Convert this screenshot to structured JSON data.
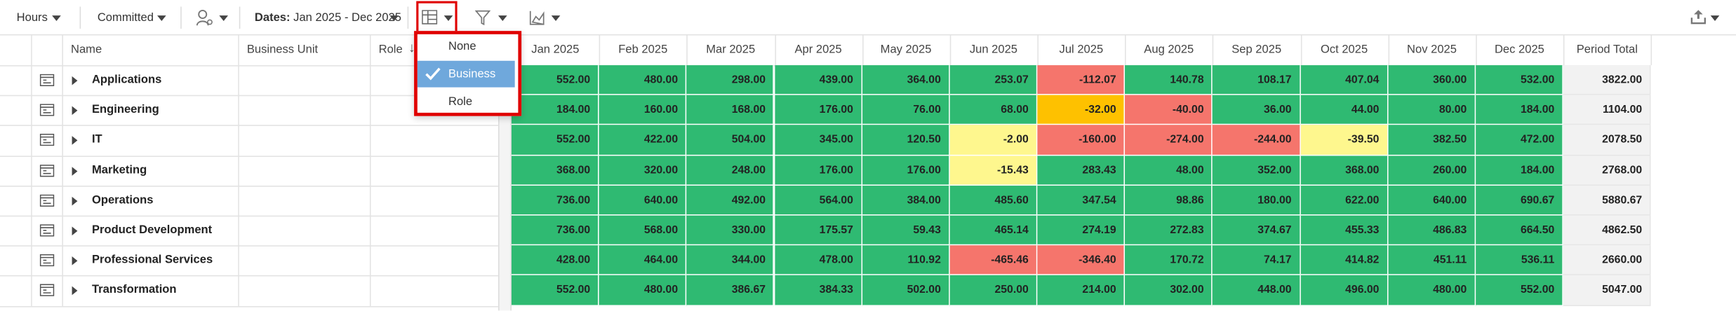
{
  "toolbar": {
    "hours": "Hours",
    "committed": "Committed",
    "dates_label": "Dates:",
    "dates_value": "Jan 2025 - Dec 2025"
  },
  "dropdown": {
    "items": [
      "None",
      "Business Unit",
      "Role"
    ],
    "selected": 1
  },
  "table": {
    "columns": [
      "Name",
      "Business Unit",
      "Role"
    ],
    "months": [
      "Jan 2025",
      "Feb 2025",
      "Mar 2025",
      "Apr 2025",
      "May 2025",
      "Jun 2025",
      "Jul 2025",
      "Aug 2025",
      "Sep 2025",
      "Oct 2025",
      "Nov 2025",
      "Dec 2025"
    ],
    "total_header": "Period Total",
    "rows": [
      {
        "name": "Applications",
        "values": [
          "552.00",
          "480.00",
          "298.00",
          "439.00",
          "364.00",
          "253.07",
          "-112.07",
          "140.78",
          "108.17",
          "407.04",
          "360.00",
          "532.00"
        ],
        "total": "3822.00",
        "colors": [
          "#2fba72",
          "#2fba72",
          "#2fba72",
          "#2fba72",
          "#2fba72",
          "#2fba72",
          "#f5756c",
          "#2fba72",
          "#2fba72",
          "#2fba72",
          "#2fba72",
          "#2fba72"
        ]
      },
      {
        "name": "Engineering",
        "values": [
          "184.00",
          "160.00",
          "168.00",
          "176.00",
          "76.00",
          "68.00",
          "-32.00",
          "-40.00",
          "36.00",
          "44.00",
          "80.00",
          "184.00"
        ],
        "total": "1104.00",
        "colors": [
          "#2fba72",
          "#2fba72",
          "#2fba72",
          "#2fba72",
          "#2fba72",
          "#2fba72",
          "#fec100",
          "#f5756c",
          "#2fba72",
          "#2fba72",
          "#2fba72",
          "#2fba72"
        ]
      },
      {
        "name": "IT",
        "values": [
          "552.00",
          "422.00",
          "504.00",
          "345.00",
          "120.50",
          "-2.00",
          "-160.00",
          "-274.00",
          "-244.00",
          "-39.50",
          "382.50",
          "472.00"
        ],
        "total": "2078.50",
        "colors": [
          "#2fba72",
          "#2fba72",
          "#2fba72",
          "#2fba72",
          "#2fba72",
          "#fef78e",
          "#f5756c",
          "#f5756c",
          "#f5756c",
          "#fef78e",
          "#2fba72",
          "#2fba72"
        ]
      },
      {
        "name": "Marketing",
        "values": [
          "368.00",
          "320.00",
          "248.00",
          "176.00",
          "176.00",
          "-15.43",
          "283.43",
          "48.00",
          "352.00",
          "368.00",
          "260.00",
          "184.00"
        ],
        "total": "2768.00",
        "colors": [
          "#2fba72",
          "#2fba72",
          "#2fba72",
          "#2fba72",
          "#2fba72",
          "#fef78e",
          "#2fba72",
          "#2fba72",
          "#2fba72",
          "#2fba72",
          "#2fba72",
          "#2fba72"
        ]
      },
      {
        "name": "Operations",
        "values": [
          "736.00",
          "640.00",
          "492.00",
          "564.00",
          "384.00",
          "485.60",
          "347.54",
          "98.86",
          "180.00",
          "622.00",
          "640.00",
          "690.67"
        ],
        "total": "5880.67",
        "colors": [
          "#2fba72",
          "#2fba72",
          "#2fba72",
          "#2fba72",
          "#2fba72",
          "#2fba72",
          "#2fba72",
          "#2fba72",
          "#2fba72",
          "#2fba72",
          "#2fba72",
          "#2fba72"
        ]
      },
      {
        "name": "Product Development",
        "values": [
          "736.00",
          "568.00",
          "330.00",
          "175.57",
          "59.43",
          "465.14",
          "274.19",
          "272.83",
          "374.67",
          "455.33",
          "486.83",
          "664.50"
        ],
        "total": "4862.50",
        "colors": [
          "#2fba72",
          "#2fba72",
          "#2fba72",
          "#2fba72",
          "#2fba72",
          "#2fba72",
          "#2fba72",
          "#2fba72",
          "#2fba72",
          "#2fba72",
          "#2fba72",
          "#2fba72"
        ]
      },
      {
        "name": "Professional Services",
        "values": [
          "428.00",
          "464.00",
          "344.00",
          "478.00",
          "110.92",
          "-465.46",
          "-346.40",
          "170.72",
          "74.17",
          "414.82",
          "451.11",
          "536.11"
        ],
        "total": "2660.00",
        "colors": [
          "#2fba72",
          "#2fba72",
          "#2fba72",
          "#2fba72",
          "#2fba72",
          "#f5756c",
          "#f5756c",
          "#2fba72",
          "#2fba72",
          "#2fba72",
          "#2fba72",
          "#2fba72"
        ]
      },
      {
        "name": "Transformation",
        "values": [
          "552.00",
          "480.00",
          "386.67",
          "384.33",
          "502.00",
          "250.00",
          "214.00",
          "302.00",
          "448.00",
          "496.00",
          "480.00",
          "552.00"
        ],
        "total": "5047.00",
        "colors": [
          "#2fba72",
          "#2fba72",
          "#2fba72",
          "#2fba72",
          "#2fba72",
          "#2fba72",
          "#2fba72",
          "#2fba72",
          "#2fba72",
          "#2fba72",
          "#2fba72",
          "#2fba72"
        ]
      }
    ]
  }
}
